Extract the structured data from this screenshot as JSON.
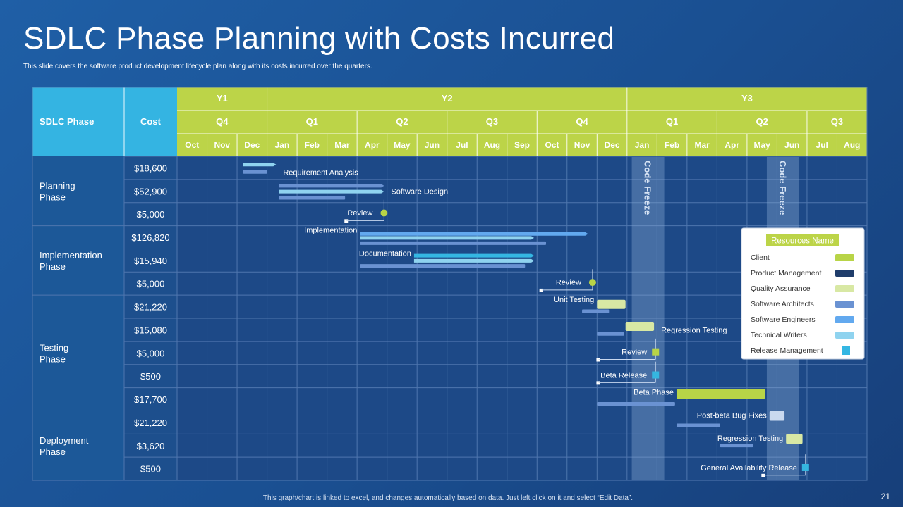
{
  "slide": {
    "title": "SDLC Phase Planning with Costs Incurred",
    "subtitle": "This slide covers the software product development lifecycle plan along with its costs incurred over the quarters.",
    "footer": "This graph/chart is linked to excel, and changes automatically based on data. Just left click on it and select “Edit Data”.",
    "page_number": "21"
  },
  "colors": {
    "header_green": "#bcd448",
    "header_cyan": "#34b4e2",
    "phase_col": "#1c5898",
    "cost_col": "#1d4f8d",
    "grid_bg": "#1d4987",
    "grid_line": "#4f76ae",
    "code_freeze": "#8aaad4"
  },
  "chart_data": {
    "type": "gantt",
    "columns": {
      "phase_header": "SDLC Phase",
      "cost_header": "Cost"
    },
    "years": [
      {
        "label": "Y1",
        "months": 3
      },
      {
        "label": "Y2",
        "months": 12
      },
      {
        "label": "Y3",
        "months": 8
      }
    ],
    "quarters": [
      {
        "label": "Q4",
        "months": 3
      },
      {
        "label": "Q1",
        "months": 3
      },
      {
        "label": "Q2",
        "months": 3
      },
      {
        "label": "Q3",
        "months": 3
      },
      {
        "label": "Q4",
        "months": 3
      },
      {
        "label": "Q1",
        "months": 3
      },
      {
        "label": "Q2",
        "months": 3
      },
      {
        "label": "Q3",
        "months": 2
      }
    ],
    "months": [
      "Oct",
      "Nov",
      "Dec",
      "Jan",
      "Feb",
      "Mar",
      "Apr",
      "May",
      "Jun",
      "Jul",
      "Aug",
      "Sep",
      "Oct",
      "Nov",
      "Dec",
      "Jan",
      "Feb",
      "Mar",
      "Apr",
      "May",
      "Jun",
      "Jul",
      "Aug"
    ],
    "phases": [
      {
        "name": "Planning Phase",
        "line1": "Planning",
        "line2": "Phase",
        "rows": 3
      },
      {
        "name": "Implementation Phase",
        "line1": "Implementation",
        "line2": "Phase",
        "rows": 3
      },
      {
        "name": "Testing Phase",
        "line1": "Testing",
        "line2": "Phase",
        "rows": 5
      },
      {
        "name": "Deployment Phase",
        "line1": "Deployment",
        "line2": "Phase",
        "rows": 3
      }
    ],
    "costs": [
      "$18,600",
      "$52,900",
      "$5,000",
      "$126,820",
      "$15,940",
      "$5,000",
      "$21,220",
      "$15,080",
      "$5,000",
      "$500",
      "$17,700",
      "$21,220",
      "$3,620",
      "$500"
    ],
    "code_freeze": {
      "label": "Code Freeze",
      "periods": [
        15.7,
        20.2
      ]
    },
    "tasks": [
      {
        "label": "Requirement Analysis",
        "row": 0,
        "label_offset": 0.3,
        "bars": [
          {
            "resource": "Technical Writers",
            "start": 2.2,
            "end": 3.3,
            "lane": 0.28,
            "arrow": true
          },
          {
            "resource": "Software Architects",
            "start": 2.2,
            "end": 3.0,
            "lane": 0.6
          }
        ]
      },
      {
        "label": "Software Design",
        "row": 1,
        "label_offset": 0.0,
        "bars": [
          {
            "resource": "Software Architects",
            "start": 3.4,
            "end": 6.9,
            "lane": 0.2,
            "arrow": true
          },
          {
            "resource": "Technical Writers",
            "start": 3.4,
            "end": 6.9,
            "lane": 0.45,
            "arrow": true
          },
          {
            "resource": "Software Architects",
            "start": 3.4,
            "end": 5.6,
            "lane": 0.72
          }
        ]
      },
      {
        "label": "Review",
        "row": 2,
        "label_offset": -0.1,
        "milestone": {
          "kind": "dot",
          "at": 6.9,
          "from": 5.65
        }
      },
      {
        "label": "Implementation",
        "row": 3,
        "label_offset": -0.45,
        "bars": [
          {
            "resource": "Software Engineers",
            "start": 6.1,
            "end": 13.7,
            "lane": 0.28,
            "arrow": true
          },
          {
            "resource": "Technical Writers",
            "start": 6.1,
            "end": 11.9,
            "lane": 0.45,
            "arrow": true
          },
          {
            "resource": "Software Architects",
            "start": 6.1,
            "end": 12.3,
            "lane": 0.68
          }
        ]
      },
      {
        "label": "Documentation",
        "row": 4,
        "label_offset": -0.1,
        "bars": [
          {
            "resource": "Release Management",
            "start": 7.9,
            "end": 11.9,
            "lane": 0.22,
            "arrow": true
          },
          {
            "resource": "Technical Writers",
            "start": 7.9,
            "end": 11.9,
            "lane": 0.44,
            "arrow": true
          },
          {
            "resource": "Software Architects",
            "start": 6.1,
            "end": 11.6,
            "lane": 0.66
          }
        ]
      },
      {
        "label": "Review",
        "row": 5,
        "label_offset": -0.45,
        "milestone": {
          "kind": "dot",
          "at": 13.85,
          "from": 12.15
        }
      },
      {
        "label": "Unit Testing",
        "row": 6,
        "label_offset": -0.2,
        "bars": [
          {
            "resource": "Quality Assurance",
            "start": 14.0,
            "end": 14.95,
            "lane": 0.2,
            "height": 13
          },
          {
            "resource": "Software Architects",
            "start": 13.5,
            "end": 14.4,
            "lane": 0.62
          }
        ]
      },
      {
        "label": "Regression Testing",
        "row": 7,
        "label_offset": 0.0,
        "bars": [
          {
            "resource": "Quality Assurance",
            "start": 14.95,
            "end": 15.9,
            "lane": 0.15,
            "height": 13
          },
          {
            "resource": "Software Architects",
            "start": 14.0,
            "end": 14.9,
            "lane": 0.6
          }
        ]
      },
      {
        "label": "Review",
        "row": 8,
        "label_offset": -0.2,
        "milestone": {
          "kind": "square",
          "at": 15.95,
          "from": 14.05,
          "color": "#b8d447"
        }
      },
      {
        "label": "Beta Release",
        "row": 9,
        "label_offset": -0.1,
        "milestone": {
          "kind": "square",
          "at": 15.95,
          "from": 14.05,
          "color": "#35b6e0"
        }
      },
      {
        "label": "Beta Phase",
        "row": 10,
        "label_offset": -0.35,
        "bars": [
          {
            "resource": "Client",
            "start": 16.65,
            "end": 19.6,
            "lane": 0.05,
            "height": 14
          },
          {
            "resource": "Software Architects",
            "start": 14.0,
            "end": 16.6,
            "lane": 0.62
          }
        ]
      },
      {
        "label": "Post-beta Bug Fixes",
        "row": 11,
        "label_offset": -0.3,
        "bars": [
          {
            "resource": "Software Engineers",
            "start": 19.75,
            "end": 20.25,
            "lane": 0.0,
            "height": 14,
            "light": true
          },
          {
            "resource": "Software Architects",
            "start": 16.65,
            "end": 18.1,
            "lane": 0.55
          }
        ]
      },
      {
        "label": "Regression Testing",
        "row": 12,
        "label_offset": -0.55,
        "bars": [
          {
            "resource": "Quality Assurance",
            "start": 20.3,
            "end": 20.85,
            "lane": 0.0,
            "height": 14
          },
          {
            "resource": "Software Architects",
            "start": 18.1,
            "end": 19.2,
            "lane": 0.42
          }
        ]
      },
      {
        "label": "General Availability Release",
        "row": 13,
        "label_offset": -0.5,
        "milestone": {
          "kind": "square",
          "at": 20.95,
          "from": 19.55,
          "color": "#35b6e0"
        }
      }
    ],
    "legend": {
      "title": "Resources Name",
      "position": "right",
      "items": [
        {
          "name": "Client",
          "color": "#b8d447"
        },
        {
          "name": "Product Management",
          "color": "#1f3d6b"
        },
        {
          "name": "Quality Assurance",
          "color": "#d8e8a4"
        },
        {
          "name": "Software Architects",
          "color": "#6a92d2"
        },
        {
          "name": "Software Engineers",
          "color": "#62a9ef"
        },
        {
          "name": "Technical Writers",
          "color": "#8fd3ef"
        },
        {
          "name": "Release Management",
          "color": "#34b7e3"
        }
      ]
    }
  }
}
